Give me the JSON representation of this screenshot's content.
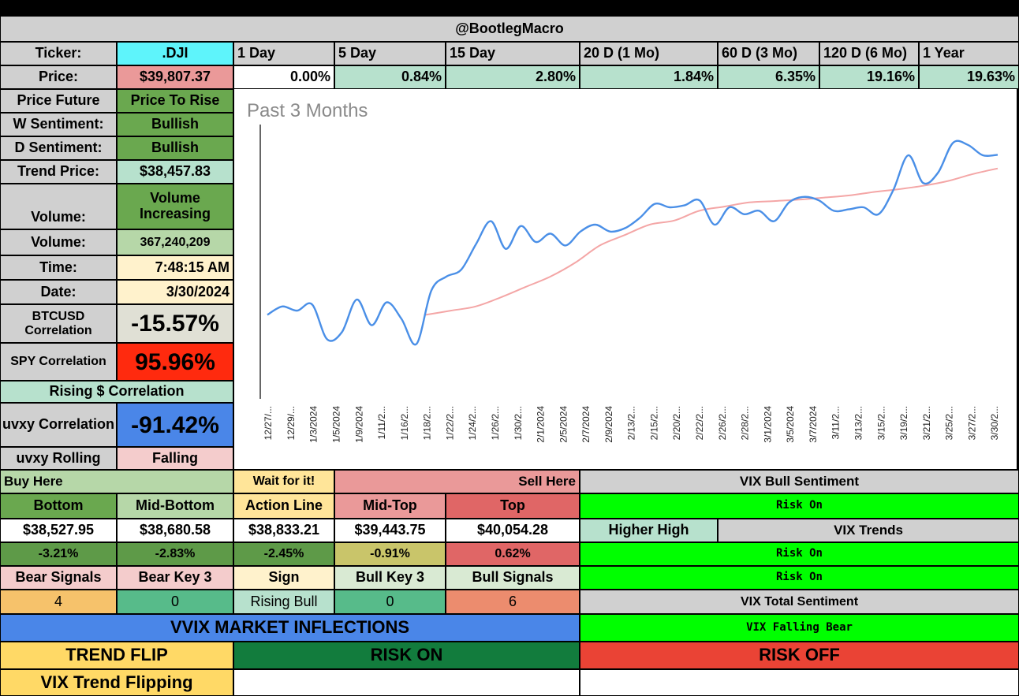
{
  "header": {
    "handle": "@BootlegMacro"
  },
  "ticker_row": {
    "label": "Ticker:",
    "value": ".DJI",
    "periods": [
      "1 Day",
      "5 Day",
      "15 Day",
      "20 D (1 Mo)",
      "60 D (3 Mo)",
      "120 D (6 Mo)",
      "1 Year"
    ]
  },
  "price_row": {
    "label": "Price:",
    "value": "$39,807.37",
    "changes": [
      "0.00%",
      "0.84%",
      "2.80%",
      "1.84%",
      "6.35%",
      "19.16%",
      "19.63%"
    ]
  },
  "stats": [
    {
      "label": "Price Future",
      "value": "Price To Rise"
    },
    {
      "label": "W Sentiment:",
      "value": "Bullish"
    },
    {
      "label": "D Sentiment:",
      "value": "Bullish"
    },
    {
      "label": "Trend Price:",
      "value": "$38,457.83"
    },
    {
      "label": "Volume:",
      "value": "Volume Increasing"
    },
    {
      "label": "Volume:",
      "value": "367,240,209"
    },
    {
      "label": "Time:",
      "value": "7:48:15 AM"
    },
    {
      "label": "Date:",
      "value": "3/30/2024"
    }
  ],
  "correlations": {
    "btc_label": "BTCUSD Correlation",
    "btc_value": "-15.57%",
    "spy_label": "SPY Correlation",
    "spy_value": "95.96%",
    "rising_label": "Rising $ Correlation",
    "uvxy_label": "uvxy Correlation",
    "uvxy_value": "-91.42%",
    "uvxy_rolling_label": "uvxy Rolling",
    "uvxy_rolling_value": "Falling"
  },
  "levels": {
    "buy_here": "Buy Here",
    "wait": "Wait for it!",
    "sell_here": "Sell Here",
    "names": [
      "Bottom",
      "Mid-Bottom",
      "Action Line",
      "Mid-Top",
      "Top"
    ],
    "prices": [
      "$38,527.95",
      "$38,680.58",
      "$38,833.21",
      "$39,443.75",
      "$40,054.28"
    ],
    "pcts": [
      "-3.21%",
      "-2.83%",
      "-2.45%",
      "-0.91%",
      "0.62%"
    ]
  },
  "signals": {
    "headers": [
      "Bear Signals",
      "Bear Key 3",
      "Sign",
      "Bull Key 3",
      "Bull Signals"
    ],
    "values": [
      "4",
      "0",
      "Rising Bull",
      "0",
      "6"
    ]
  },
  "vix": {
    "bull_sentiment_label": "VIX Bull Sentiment",
    "bull_sentiment_value": "Risk On",
    "higher_high": "Higher High",
    "trends_label": "VIX Trends",
    "trend_1": "Risk On",
    "trend_2": "Risk On",
    "total_label": "VIX Total Sentiment",
    "total_value": "VIX Falling Bear"
  },
  "bottom": {
    "vvix": "VVIX MARKET INFLECTIONS",
    "trend_flip": "TREND FLIP",
    "risk_on": "RISK ON",
    "risk_off": "RISK OFF",
    "vix_flipping": "VIX Trend Flipping"
  },
  "colors": {
    "price_line": "#4a8fe7",
    "trend_line": "#f4a6a6"
  },
  "chart_data": {
    "type": "line",
    "title": "Past 3 Months",
    "x_tick_labels": [
      "12/27/...",
      "12/29/...",
      "1/3/2024",
      "1/5/2024",
      "1/9/2024",
      "1/11/2...",
      "1/16/2...",
      "1/18/2...",
      "1/22/2...",
      "1/24/2...",
      "1/26/2...",
      "1/30/2...",
      "2/1/2024",
      "2/5/2024",
      "2/7/2024",
      "2/9/2024",
      "2/13/2...",
      "2/15/2...",
      "2/20/2...",
      "2/22/2...",
      "2/26/2...",
      "2/28/2...",
      "3/1/2024",
      "3/5/2024",
      "3/7/2024",
      "3/11/2...",
      "3/13/2...",
      "3/15/2...",
      "3/19/2...",
      "3/21/2...",
      "3/25/2...",
      "3/27/2...",
      "3/30/2..."
    ],
    "ylim": [
      36300,
      40300
    ],
    "grid": false,
    "series": [
      {
        "values": [
          37500,
          37620,
          37560,
          37650,
          37150,
          37250,
          37720,
          37350,
          37680,
          37440,
          37080,
          37850,
          38050,
          38150,
          38520,
          38850,
          38450,
          38780,
          38550,
          38670,
          38500,
          38700,
          38800,
          38700,
          38750,
          38900,
          39100,
          39050,
          39080,
          39150,
          38800,
          39050,
          38950,
          39000,
          38850,
          39120,
          39200,
          39150,
          39000,
          39020,
          39050,
          38950,
          39300,
          39800,
          39400,
          39550,
          39980,
          39950,
          39800,
          39807.37
        ]
      },
      {
        "values": [
          37500,
          37560,
          37620,
          37750,
          37900,
          38050,
          38250,
          38500,
          38650,
          38800,
          38860,
          39000,
          39060,
          39120,
          39140,
          39160,
          39190,
          39220,
          39270,
          39310,
          39360,
          39430,
          39530,
          39610
        ]
      }
    ]
  }
}
